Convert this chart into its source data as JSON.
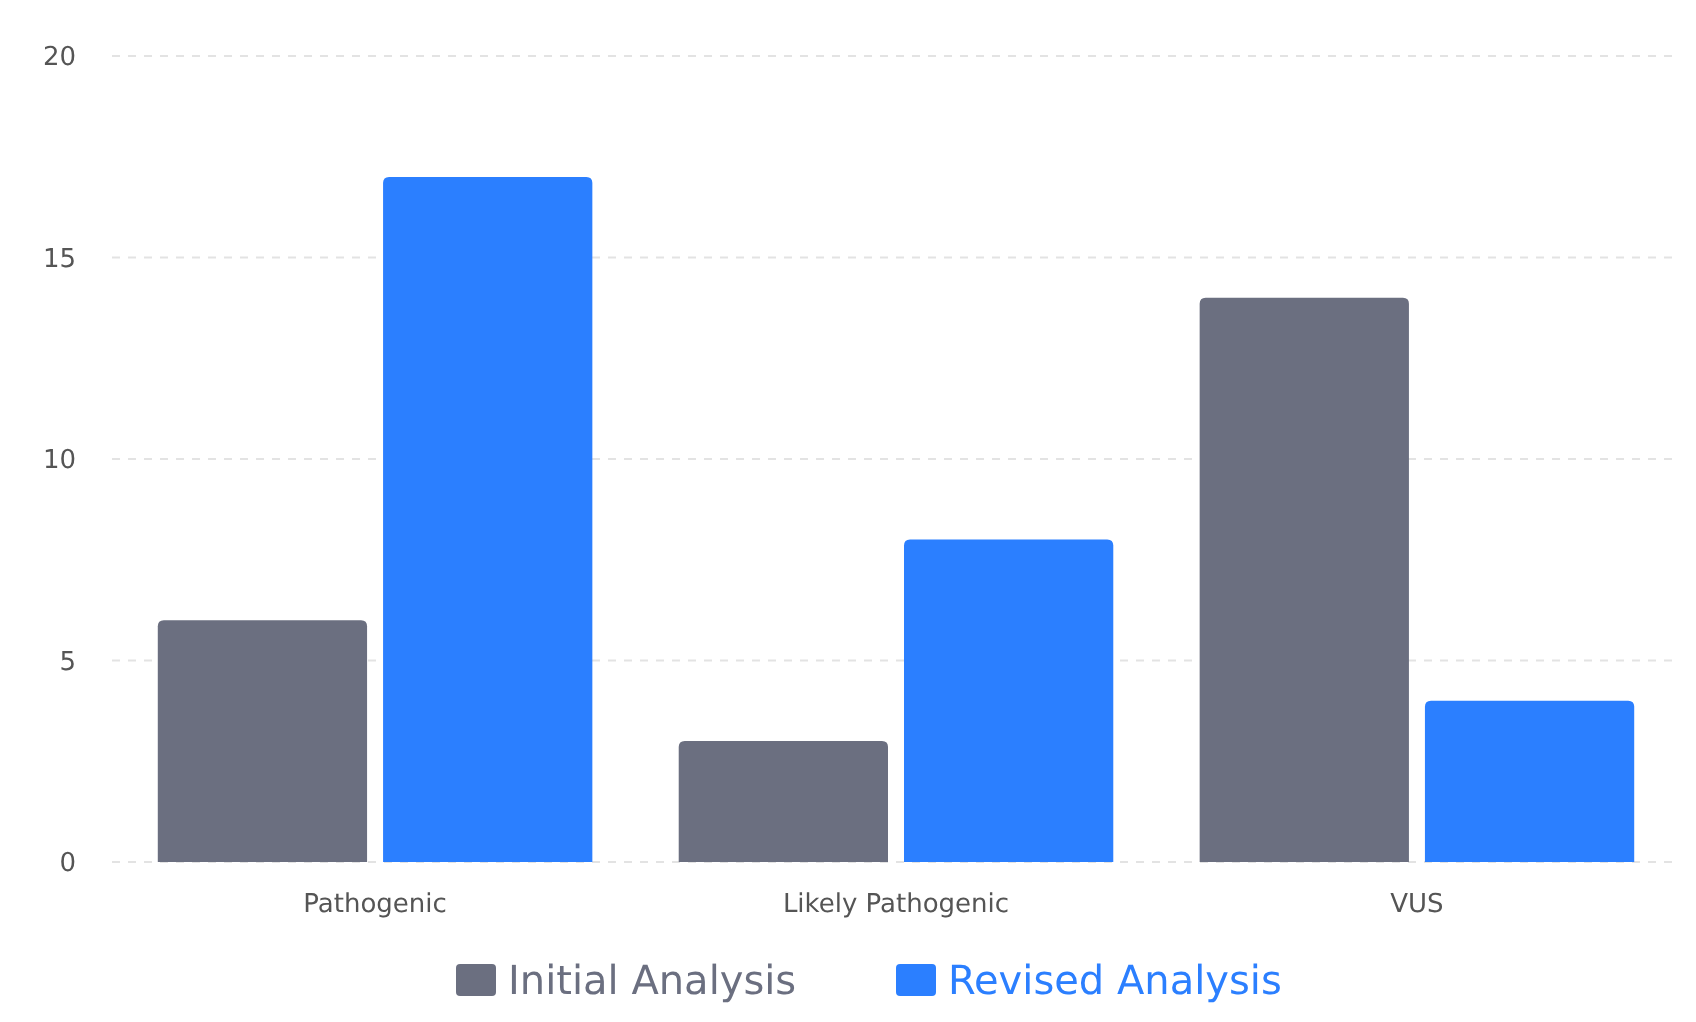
{
  "chart_data": {
    "type": "bar",
    "categories": [
      "Pathogenic",
      "Likely Pathogenic",
      "VUS"
    ],
    "series": [
      {
        "name": "Initial Analysis",
        "color": "#6b6f80",
        "values": [
          6,
          3,
          14
        ]
      },
      {
        "name": "Revised Analysis",
        "color": "#2b7fff",
        "values": [
          17,
          8,
          4
        ]
      }
    ],
    "ylim": [
      0,
      20
    ],
    "yticks": [
      0,
      5,
      10,
      15,
      20
    ],
    "grid": "y",
    "legend": "bottom"
  }
}
